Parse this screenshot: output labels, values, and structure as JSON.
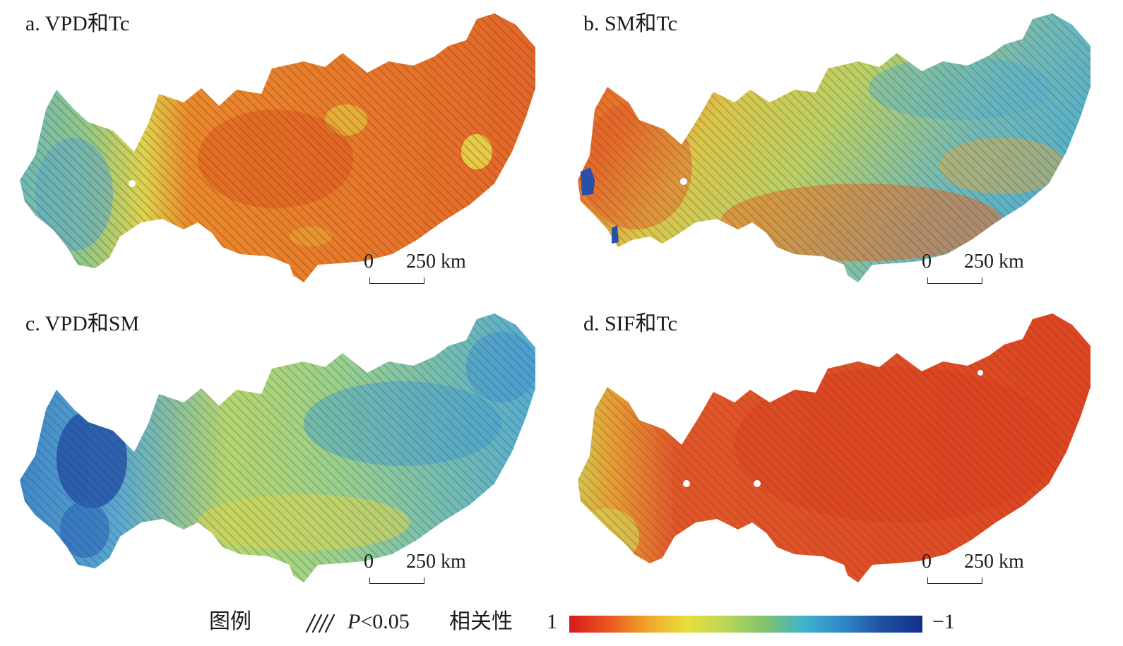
{
  "panels": [
    {
      "id": "a",
      "title": "a. VPD和Tc",
      "scale": {
        "zero": "0",
        "distance": "250 km"
      }
    },
    {
      "id": "b",
      "title": "b. SM和Tc",
      "scale": {
        "zero": "0",
        "distance": "250 km"
      }
    },
    {
      "id": "c",
      "title": "c. VPD和SM",
      "scale": {
        "zero": "0",
        "distance": "250 km"
      }
    },
    {
      "id": "d",
      "title": "d. SIF和Tc",
      "scale": {
        "zero": "0",
        "distance": "250 km"
      }
    }
  ],
  "legend": {
    "title": "图例",
    "significance_symbol": "P",
    "significance_rest": "<0.05",
    "correlation_label": "相关性",
    "max_label": "1",
    "min_label": "−1",
    "colormap": [
      "#d7191c",
      "#e8561f",
      "#f0a62a",
      "#e9df3c",
      "#b9d659",
      "#7fc26c",
      "#3fb3cf",
      "#2f86c6",
      "#1f4e9e",
      "#14308a"
    ]
  },
  "colors": {
    "strong_positive": "#dc4a1e",
    "positive": "#e6772a",
    "weak_positive": "#ecb13a",
    "neutral": "#cfd95a",
    "weak_negative": "#8ccc8c",
    "negative": "#4aa8d6",
    "strong_negative": "#2856a8",
    "hatch": "#7a2e10"
  },
  "icons": {
    "hatch_symbol": "hatch-icon"
  }
}
